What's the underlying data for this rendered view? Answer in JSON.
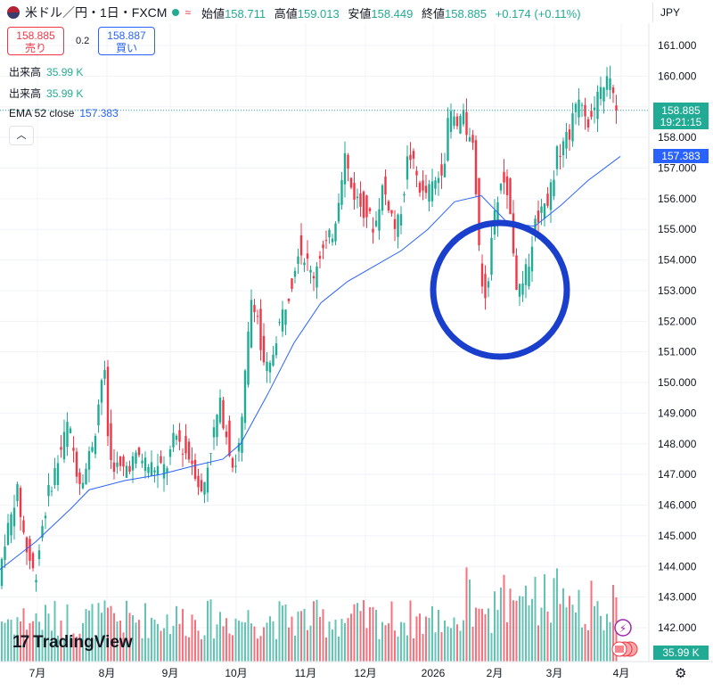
{
  "header": {
    "symbol": "米ドル／円・1日・FXCM",
    "approx": "≈",
    "open_label": "始値",
    "open": "158.711",
    "high_label": "高値",
    "high": "159.013",
    "low_label": "安値",
    "low": "158.449",
    "close_label": "終値",
    "close": "158.885",
    "change": "+0.174 (+0.11%)",
    "currency": "JPY"
  },
  "trade": {
    "sell_price": "158.885",
    "sell_label": "売り",
    "spread": "0.2",
    "buy_price": "158.887",
    "buy_label": "買い"
  },
  "legend": {
    "vol1_label": "出来高",
    "vol1_value": "35.99 K",
    "vol2_label": "出来高",
    "vol2_value": "35.99 K",
    "ema_label": "EMA 52 close",
    "ema_value": "157.383"
  },
  "price_axis": {
    "last_price": "158.885",
    "countdown": "19:21:15",
    "ema_tag": "157.383",
    "volume_tag": "35.99 K"
  },
  "branding": {
    "logo_text": "TradingView"
  },
  "colors": {
    "up": "#22ab94",
    "down": "#f23645",
    "ema": "#2962ff",
    "annotation": "#1a3fcc"
  },
  "chart_data": {
    "type": "candlestick",
    "timeframe": "1D",
    "ylim": [
      141.5,
      161.5
    ],
    "y_ticks": [
      "161.000",
      "160.000",
      "159.000",
      "158.000",
      "157.000",
      "156.000",
      "155.000",
      "154.000",
      "153.000",
      "152.000",
      "151.000",
      "150.000",
      "149.000",
      "148.000",
      "147.000",
      "146.000",
      "145.000",
      "144.000",
      "143.000",
      "142.000"
    ],
    "x_ticks": [
      "7月",
      "8月",
      "9月",
      "10月",
      "11月",
      "12月",
      "2026",
      "2月",
      "3月",
      "4月"
    ],
    "series": [
      {
        "name": "EMA 52 close",
        "last": 157.383
      },
      {
        "name": "出来高",
        "last": "35.99 K"
      }
    ],
    "price_path": [
      [
        0,
        142.9
      ],
      [
        8,
        144.8
      ],
      [
        16,
        145.6
      ],
      [
        22,
        146.6
      ],
      [
        32,
        144.7
      ],
      [
        43,
        143.6
      ],
      [
        50,
        145.2
      ],
      [
        58,
        146.4
      ],
      [
        68,
        147.4
      ],
      [
        80,
        148.7
      ],
      [
        92,
        146.8
      ],
      [
        100,
        147.2
      ],
      [
        110,
        148.4
      ],
      [
        120,
        150.7
      ],
      [
        126,
        147.5
      ],
      [
        140,
        147.1
      ],
      [
        150,
        147.4
      ],
      [
        160,
        147.6
      ],
      [
        170,
        147.3
      ],
      [
        180,
        147.2
      ],
      [
        190,
        147.2
      ],
      [
        200,
        148.3
      ],
      [
        210,
        147.8
      ],
      [
        220,
        147.4
      ],
      [
        230,
        146.3
      ],
      [
        240,
        147.9
      ],
      [
        250,
        149.3
      ],
      [
        258,
        148.3
      ],
      [
        266,
        147.1
      ],
      [
        274,
        148.3
      ],
      [
        280,
        150.8
      ],
      [
        286,
        152.9
      ],
      [
        292,
        152.3
      ],
      [
        298,
        150.5
      ],
      [
        306,
        150.4
      ],
      [
        314,
        151.6
      ],
      [
        320,
        152.2
      ],
      [
        330,
        153.2
      ],
      [
        338,
        154.4
      ],
      [
        346,
        154.1
      ],
      [
        354,
        153.4
      ],
      [
        362,
        154.2
      ],
      [
        370,
        154.5
      ],
      [
        378,
        155.0
      ],
      [
        384,
        156.2
      ],
      [
        390,
        157.5
      ],
      [
        398,
        156.3
      ],
      [
        408,
        155.8
      ],
      [
        416,
        155.5
      ],
      [
        424,
        155.0
      ],
      [
        432,
        156.4
      ],
      [
        440,
        155.8
      ],
      [
        448,
        154.9
      ],
      [
        456,
        156.1
      ],
      [
        462,
        157.6
      ],
      [
        470,
        156.8
      ],
      [
        478,
        156.1
      ],
      [
        486,
        156.3
      ],
      [
        494,
        156.6
      ],
      [
        502,
        157.3
      ],
      [
        508,
        158.9
      ],
      [
        516,
        158.3
      ],
      [
        522,
        158.8
      ],
      [
        528,
        158.1
      ],
      [
        536,
        157.4
      ],
      [
        540,
        154.5
      ],
      [
        546,
        152.7
      ],
      [
        552,
        153.6
      ],
      [
        558,
        155.3
      ],
      [
        565,
        156.6
      ],
      [
        572,
        156.4
      ],
      [
        578,
        154.9
      ],
      [
        584,
        152.9
      ],
      [
        590,
        153.1
      ],
      [
        596,
        153.9
      ],
      [
        604,
        155.2
      ],
      [
        612,
        155.8
      ],
      [
        620,
        156.1
      ],
      [
        628,
        157.4
      ],
      [
        636,
        157.9
      ],
      [
        644,
        158.2
      ],
      [
        652,
        159.5
      ],
      [
        658,
        159.1
      ],
      [
        664,
        158.5
      ],
      [
        670,
        158.8
      ],
      [
        676,
        159.4
      ],
      [
        682,
        159.9
      ],
      [
        690,
        159.7
      ],
      [
        694,
        158.9
      ]
    ],
    "ema_path": [
      [
        0,
        143.9
      ],
      [
        40,
        144.8
      ],
      [
        80,
        145.9
      ],
      [
        100,
        146.5
      ],
      [
        140,
        146.8
      ],
      [
        180,
        147.0
      ],
      [
        220,
        147.3
      ],
      [
        250,
        147.5
      ],
      [
        270,
        148.0
      ],
      [
        300,
        149.6
      ],
      [
        330,
        151.3
      ],
      [
        360,
        152.6
      ],
      [
        390,
        153.3
      ],
      [
        420,
        153.8
      ],
      [
        450,
        154.3
      ],
      [
        480,
        155.0
      ],
      [
        510,
        155.9
      ],
      [
        540,
        156.1
      ],
      [
        570,
        155.2
      ],
      [
        600,
        155.1
      ],
      [
        630,
        155.8
      ],
      [
        660,
        156.6
      ],
      [
        696,
        157.38
      ]
    ],
    "annotation": {
      "shape": "circle",
      "highlight_range": [
        152.0,
        155.3
      ]
    }
  }
}
